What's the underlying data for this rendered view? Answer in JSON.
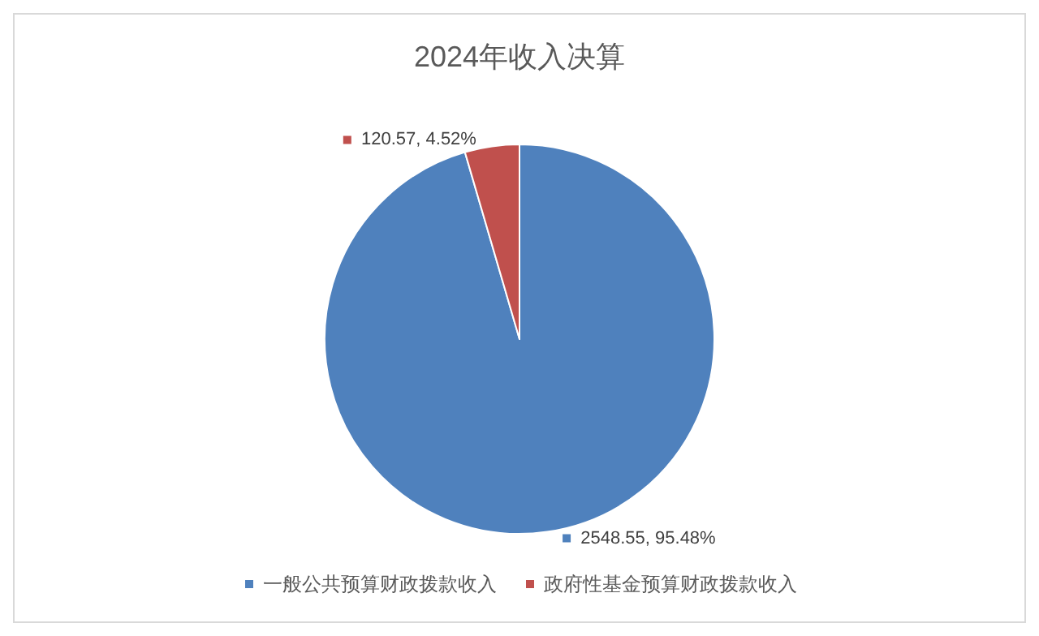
{
  "chart_data": {
    "type": "pie",
    "title": "2024年收入决算",
    "categories": [
      "一般公共预算财政拨款收入",
      "政府性基金预算财政拨款收入"
    ],
    "values": [
      2548.55,
      120.57
    ],
    "value_labels": [
      "2548.55, 95.48%",
      "120.57, 4.52%"
    ],
    "colors": [
      "#4f81bd",
      "#c0504d"
    ],
    "legend": "bottom"
  }
}
